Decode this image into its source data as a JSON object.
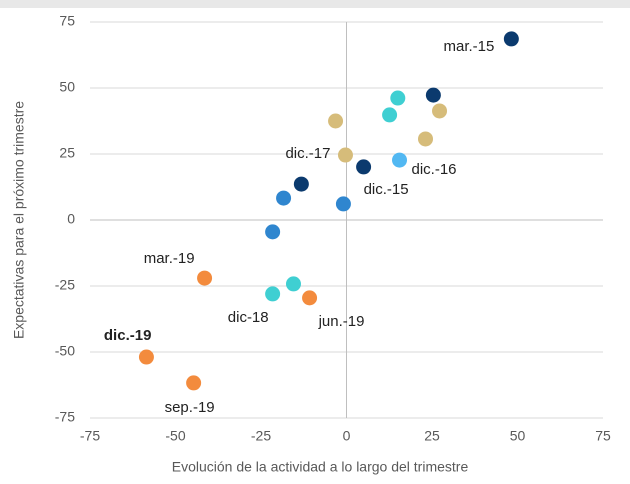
{
  "chart_data": {
    "type": "scatter",
    "xlabel": "Evolución de la actividad a lo largo del trimestre",
    "ylabel": "Expectativas para el próximo trimestre",
    "x": [
      48.2,
      25.4,
      27.2,
      15,
      12.6,
      23.1,
      -3.2,
      -0.3,
      15.5,
      5,
      -13.2,
      -18.4,
      -0.9,
      -21.6,
      -41.5,
      -15.5,
      -21.6,
      -10.8,
      -58.5,
      -44.7
    ],
    "y": [
      68.6,
      47.3,
      41.3,
      46.2,
      39.8,
      30.7,
      37.5,
      24.6,
      22.7,
      20.1,
      13.6,
      8.3,
      6.1,
      -4.5,
      -22,
      -24.2,
      -28,
      -29.5,
      -51.9,
      -61.7
    ],
    "colors": [
      "#0b3a6e",
      "#0b3a6e",
      "#d6bc7a",
      "#3fcfd2",
      "#3fcfd2",
      "#d6bc7a",
      "#d6bc7a",
      "#d6bc7a",
      "#52b8f2",
      "#0b3a6e",
      "#0b3a6e",
      "#2f86cf",
      "#2f86cf",
      "#2f86cf",
      "#f38b3d",
      "#3fcfd2",
      "#3fcfd2",
      "#f38b3d",
      "#f38b3d",
      "#f38b3d"
    ],
    "point_labels": [
      "mar.-15",
      null,
      null,
      null,
      null,
      null,
      null,
      "dic.-17",
      "dic.-16",
      "dic.-15",
      null,
      null,
      null,
      null,
      "mar.-19",
      null,
      "dic-18",
      "jun.-19",
      "dic.-19",
      "sep.-19"
    ],
    "xlim": [
      -75,
      75
    ],
    "ylim": [
      -75,
      75
    ],
    "xticks": [
      -75,
      -50,
      -25,
      0,
      25,
      50,
      75
    ],
    "yticks": [
      -75,
      -50,
      -25,
      0,
      25,
      50,
      75
    ],
    "grid": true
  }
}
